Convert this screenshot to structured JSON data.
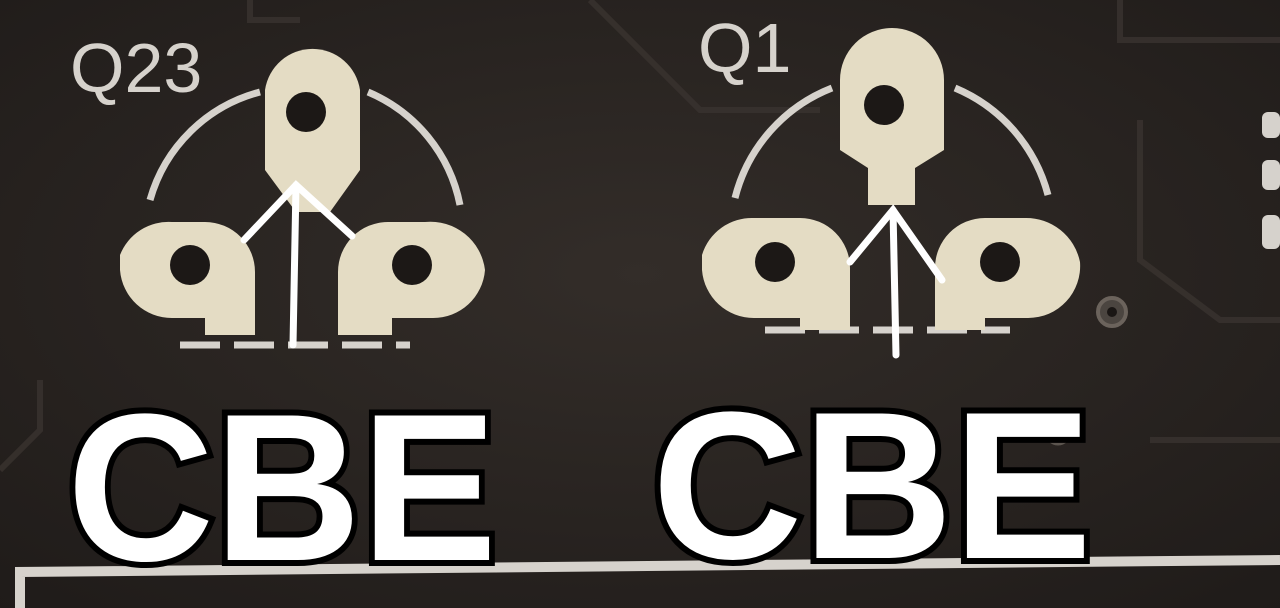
{
  "photo": {
    "board_color": "#2a2522",
    "silkscreen_color": "#d6d2cc",
    "pad_color": "#e4dcc4",
    "components": [
      {
        "designator": "Q23",
        "annotation": "CBE"
      },
      {
        "designator": "Q1",
        "annotation": "CBE"
      }
    ]
  }
}
